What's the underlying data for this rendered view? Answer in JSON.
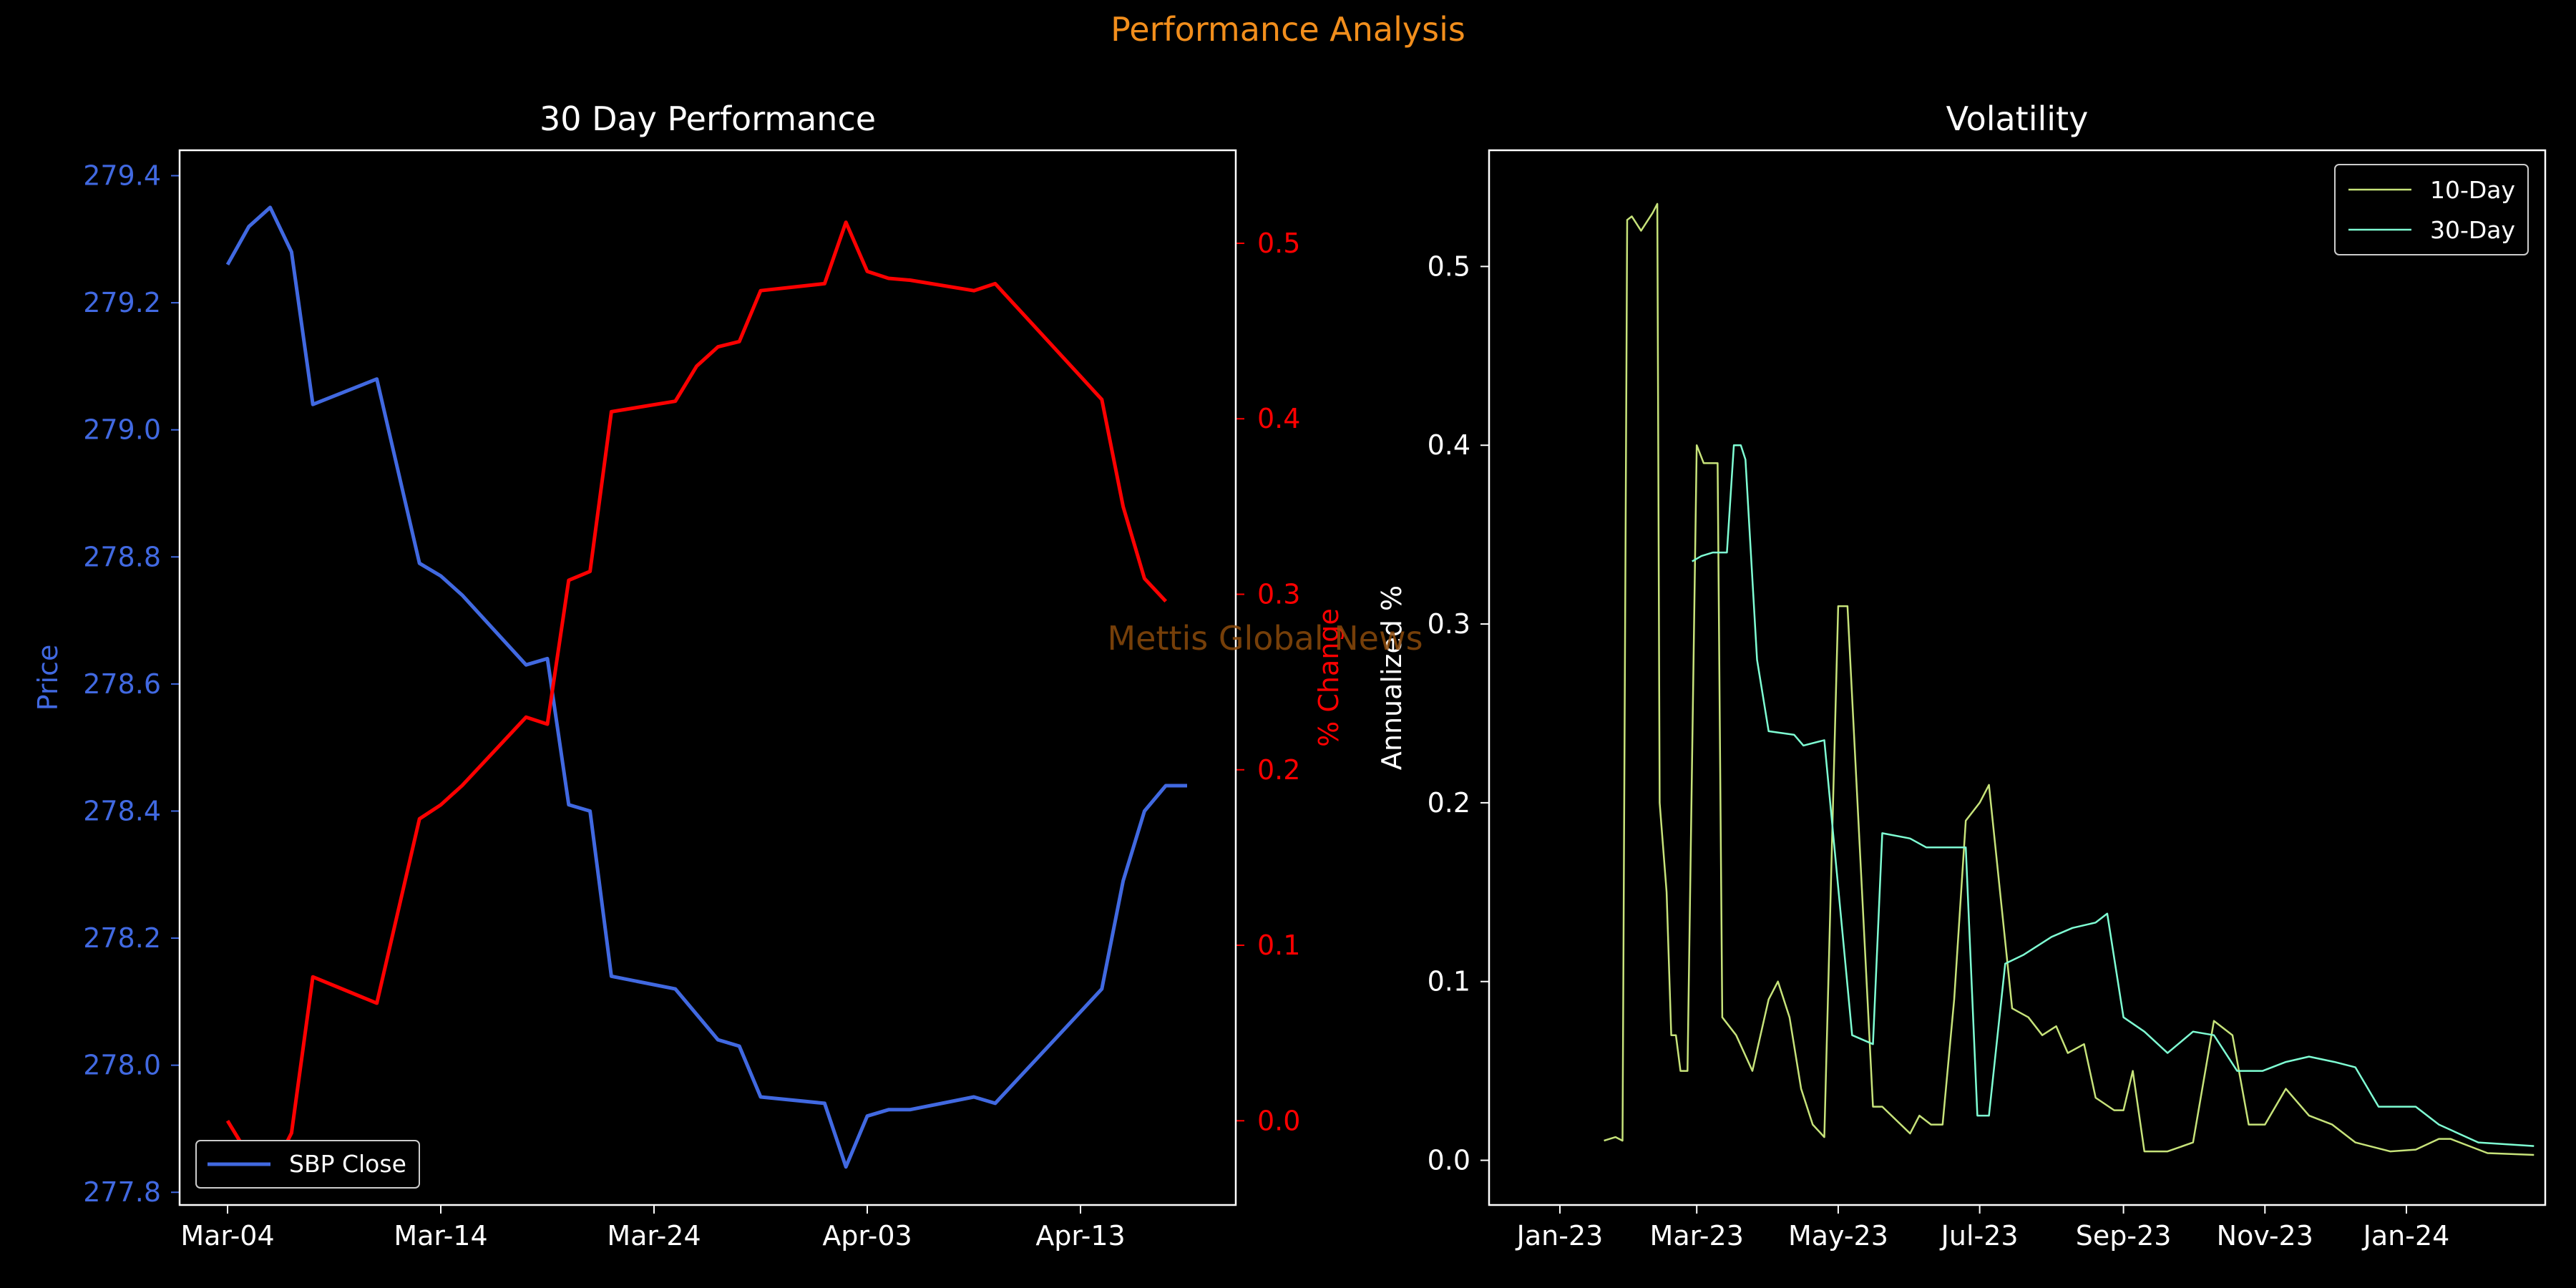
{
  "figure": {
    "suptitle": "Performance Analysis",
    "watermark": "Mettis Global News"
  },
  "colors": {
    "background": "#000000",
    "suptitle": "#f28e1c",
    "price": "#4169e1",
    "pct": "#ff0000",
    "vol10": "#c7e37a",
    "vol30": "#7fffd4",
    "text": "#ffffff",
    "watermark": "#8b4a0b"
  },
  "chart_data": [
    {
      "type": "line",
      "title": "30 Day Performance",
      "xlabel": "",
      "ylabel": "Price",
      "y2label": "% Change",
      "x_tick_labels": [
        "Mar-04",
        "Mar-14",
        "Mar-24",
        "Apr-03",
        "Apr-13"
      ],
      "ylim": [
        277.78,
        279.44
      ],
      "y_ticks": [
        277.8,
        278.0,
        278.2,
        278.4,
        278.6,
        278.8,
        279.0,
        279.2,
        279.4
      ],
      "y2lim": [
        -0.048,
        0.553
      ],
      "y2_ticks": [
        0.0,
        0.1,
        0.2,
        0.3,
        0.4,
        0.5
      ],
      "legend": {
        "position": "lower-left",
        "entries": [
          "SBP Close"
        ]
      },
      "series": [
        {
          "name": "SBP Close",
          "axis": "left",
          "x": [
            "2024-03-04",
            "2024-03-05",
            "2024-03-06",
            "2024-03-07",
            "2024-03-08",
            "2024-03-11",
            "2024-03-13",
            "2024-03-14",
            "2024-03-15",
            "2024-03-18",
            "2024-03-19",
            "2024-03-20",
            "2024-03-21",
            "2024-03-22",
            "2024-03-25",
            "2024-03-26",
            "2024-03-27",
            "2024-03-28",
            "2024-03-29",
            "2024-04-01",
            "2024-04-02",
            "2024-04-03",
            "2024-04-04",
            "2024-04-05",
            "2024-04-08",
            "2024-04-09",
            "2024-04-14",
            "2024-04-15",
            "2024-04-16",
            "2024-04-17",
            "2024-04-18"
          ],
          "values": [
            279.26,
            279.32,
            279.35,
            279.28,
            279.04,
            279.08,
            278.79,
            278.77,
            278.74,
            278.63,
            278.64,
            278.41,
            278.4,
            278.14,
            278.12,
            278.08,
            278.04,
            278.03,
            277.95,
            277.94,
            277.84,
            277.92,
            277.93,
            277.93,
            277.95,
            277.94,
            278.12,
            278.29,
            278.4,
            278.44,
            278.44
          ]
        },
        {
          "name": "% Change",
          "axis": "right",
          "x": [
            "2024-03-04",
            "2024-03-05",
            "2024-03-06",
            "2024-03-07",
            "2024-03-08",
            "2024-03-11",
            "2024-03-13",
            "2024-03-14",
            "2024-03-15",
            "2024-03-18",
            "2024-03-19",
            "2024-03-20",
            "2024-03-21",
            "2024-03-22",
            "2024-03-25",
            "2024-03-26",
            "2024-03-27",
            "2024-03-28",
            "2024-03-29",
            "2024-04-01",
            "2024-04-02",
            "2024-04-03",
            "2024-04-04",
            "2024-04-05",
            "2024-04-08",
            "2024-04-09",
            "2024-04-14",
            "2024-04-15",
            "2024-04-16",
            "2024-04-17"
          ],
          "values": [
            0.0,
            -0.02,
            -0.031,
            -0.007,
            0.082,
            0.067,
            0.172,
            0.18,
            0.191,
            0.23,
            0.226,
            0.308,
            0.313,
            0.404,
            0.41,
            0.43,
            0.441,
            0.444,
            0.473,
            0.477,
            0.512,
            0.484,
            0.48,
            0.479,
            0.473,
            0.477,
            0.411,
            0.35,
            0.309,
            0.296
          ]
        }
      ]
    },
    {
      "type": "line",
      "title": "Volatility",
      "xlabel": "",
      "ylabel": "Annualized %",
      "x_tick_labels": [
        "Jan-23",
        "Mar-23",
        "May-23",
        "Jul-23",
        "Sep-23",
        "Nov-23",
        "Jan-24"
      ],
      "ylim": [
        -0.025,
        0.565
      ],
      "y_ticks": [
        0.0,
        0.1,
        0.2,
        0.3,
        0.4,
        0.5
      ],
      "legend": {
        "position": "top-right",
        "entries": [
          "10-Day",
          "30-Day"
        ]
      },
      "series": [
        {
          "name": "10-Day",
          "x": [
            "2023-01-20",
            "2023-01-25",
            "2023-01-28",
            "2023-01-30",
            "2023-02-01",
            "2023-02-05",
            "2023-02-10",
            "2023-02-12",
            "2023-02-13",
            "2023-02-16",
            "2023-02-18",
            "2023-02-20",
            "2023-02-22",
            "2023-02-25",
            "2023-03-01",
            "2023-03-04",
            "2023-03-10",
            "2023-03-12",
            "2023-03-18",
            "2023-03-25",
            "2023-04-01",
            "2023-04-05",
            "2023-04-10",
            "2023-04-15",
            "2023-04-20",
            "2023-04-25",
            "2023-05-01",
            "2023-05-03",
            "2023-05-05",
            "2023-05-16",
            "2023-05-20",
            "2023-06-01",
            "2023-06-05",
            "2023-06-10",
            "2023-06-15",
            "2023-06-20",
            "2023-06-25",
            "2023-07-01",
            "2023-07-05",
            "2023-07-15",
            "2023-07-22",
            "2023-07-28",
            "2023-08-03",
            "2023-08-08",
            "2023-08-15",
            "2023-08-20",
            "2023-08-28",
            "2023-09-01",
            "2023-09-05",
            "2023-09-10",
            "2023-09-20",
            "2023-10-01",
            "2023-10-10",
            "2023-10-18",
            "2023-10-25",
            "2023-11-01",
            "2023-11-10",
            "2023-11-20",
            "2023-11-30",
            "2023-12-10",
            "2023-12-25",
            "2024-01-05",
            "2024-01-15",
            "2024-01-20",
            "2024-02-05",
            "2024-02-25"
          ],
          "values": [
            0.011,
            0.013,
            0.011,
            0.526,
            0.528,
            0.52,
            0.53,
            0.535,
            0.2,
            0.15,
            0.07,
            0.07,
            0.05,
            0.05,
            0.4,
            0.39,
            0.39,
            0.08,
            0.07,
            0.05,
            0.09,
            0.1,
            0.08,
            0.04,
            0.02,
            0.013,
            0.31,
            0.31,
            0.31,
            0.03,
            0.03,
            0.015,
            0.025,
            0.02,
            0.02,
            0.09,
            0.19,
            0.2,
            0.21,
            0.085,
            0.08,
            0.07,
            0.075,
            0.06,
            0.065,
            0.035,
            0.028,
            0.028,
            0.05,
            0.005,
            0.005,
            0.01,
            0.078,
            0.07,
            0.02,
            0.02,
            0.04,
            0.025,
            0.02,
            0.01,
            0.005,
            0.006,
            0.012,
            0.012,
            0.004,
            0.003
          ]
        },
        {
          "name": "30-Day",
          "x": [
            "2023-02-27",
            "2023-03-03",
            "2023-03-08",
            "2023-03-14",
            "2023-03-17",
            "2023-03-20",
            "2023-03-22",
            "2023-03-27",
            "2023-04-01",
            "2023-04-12",
            "2023-04-16",
            "2023-04-25",
            "2023-05-07",
            "2023-05-16",
            "2023-05-20",
            "2023-06-01",
            "2023-06-08",
            "2023-06-20",
            "2023-06-25",
            "2023-06-30",
            "2023-07-05",
            "2023-07-12",
            "2023-07-20",
            "2023-08-01",
            "2023-08-10",
            "2023-08-20",
            "2023-08-25",
            "2023-09-01",
            "2023-09-10",
            "2023-09-20",
            "2023-10-01",
            "2023-10-10",
            "2023-10-20",
            "2023-10-31",
            "2023-11-10",
            "2023-11-20",
            "2023-12-01",
            "2023-12-10",
            "2023-12-20",
            "2024-01-05",
            "2024-01-15",
            "2024-02-01",
            "2024-02-25"
          ],
          "values": [
            0.335,
            0.338,
            0.34,
            0.34,
            0.4,
            0.4,
            0.392,
            0.28,
            0.24,
            0.238,
            0.232,
            0.235,
            0.07,
            0.065,
            0.183,
            0.18,
            0.175,
            0.175,
            0.175,
            0.025,
            0.025,
            0.11,
            0.115,
            0.125,
            0.13,
            0.133,
            0.138,
            0.08,
            0.072,
            0.06,
            0.072,
            0.07,
            0.05,
            0.05,
            0.055,
            0.058,
            0.055,
            0.052,
            0.03,
            0.03,
            0.02,
            0.01,
            0.008
          ]
        }
      ]
    }
  ]
}
